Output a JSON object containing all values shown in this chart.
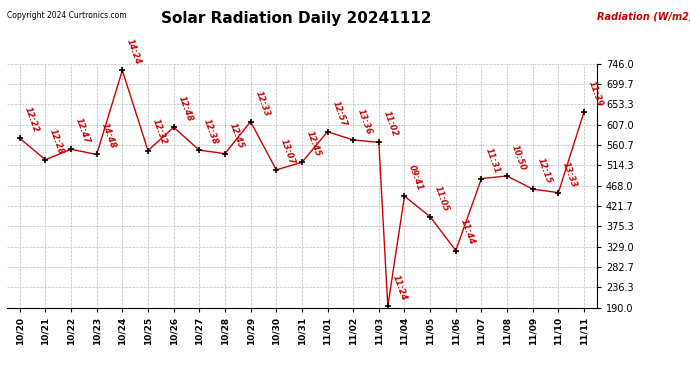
{
  "title": "Solar Radiation Daily 20241112",
  "copyright_text": "Copyright 2024 Curtronics.com",
  "ylabel": "Radiation (W/m2)",
  "background_color": "#ffffff",
  "grid_color": "#bbbbbb",
  "line_color": "#cc0000",
  "text_color": "#cc0000",
  "ylim": [
    190.0,
    746.0
  ],
  "yticks": [
    190.0,
    236.3,
    282.7,
    329.0,
    375.3,
    421.7,
    468.0,
    514.3,
    560.7,
    607.0,
    653.3,
    699.7,
    746.0
  ],
  "x_indices": [
    0,
    1,
    2,
    3,
    4,
    5,
    6,
    7,
    8,
    9,
    10,
    11,
    12,
    13,
    14,
    14.35,
    15,
    16,
    17,
    18,
    19,
    20,
    21,
    22
  ],
  "values": [
    576,
    527,
    551,
    539,
    731,
    548,
    601,
    549,
    541,
    614,
    504,
    521,
    591,
    572,
    567,
    193,
    444,
    397,
    320,
    484,
    490,
    460,
    452,
    636
  ],
  "time_labels": [
    "12:22",
    "12:28",
    "12:47",
    "14:48",
    "14:24",
    "12:32",
    "12:48",
    "12:38",
    "12:45",
    "12:33",
    "13:07",
    "12:45",
    "12:57",
    "13:36",
    "11:02",
    "11:24",
    "09:41",
    "11:05",
    "11:44",
    "11:31",
    "10:50",
    "12:15",
    "13:33",
    "11:39"
  ],
  "xtick_positions": [
    0,
    1,
    2,
    3,
    4,
    5,
    6,
    7,
    8,
    9,
    10,
    11,
    12,
    13,
    14,
    15,
    16,
    17,
    18,
    19,
    20,
    21,
    22
  ],
  "xtick_labels": [
    "10/20",
    "10/21",
    "10/22",
    "10/23",
    "10/24",
    "10/25",
    "10/26",
    "10/27",
    "10/28",
    "10/29",
    "10/30",
    "10/31",
    "11/01",
    "11/02",
    "11/03",
    "11/04",
    "11/05",
    "11/06",
    "11/07",
    "11/08",
    "11/09",
    "11/10",
    "11/11"
  ],
  "title_fontsize": 11,
  "label_fontsize": 6,
  "tick_fontsize": 6.5,
  "ytick_fontsize": 7
}
